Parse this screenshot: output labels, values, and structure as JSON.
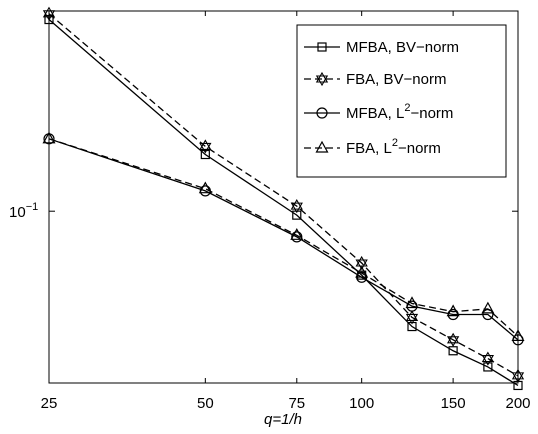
{
  "chart_data": {
    "type": "line",
    "xlabel": "q=1/h",
    "ylabel": "",
    "xscale": "log",
    "yscale": "log",
    "xlim": [
      25,
      200
    ],
    "ylim": [
      0.0265,
      0.47
    ],
    "x_ticks": [
      25,
      50,
      75,
      100,
      150,
      200
    ],
    "x_tick_labels": [
      "25",
      "50",
      "75",
      "100",
      "150",
      "200"
    ],
    "y_ticks": [
      0.1
    ],
    "y_tick_labels": [
      "10",
      "−1"
    ],
    "grid": false,
    "legend_position": "top-right",
    "series": [
      {
        "name": "MFBA, BV−norm",
        "name_parts": [
          "MFBA, BV−norm"
        ],
        "marker": "square",
        "dash": "solid",
        "x": [
          25,
          50,
          75,
          100,
          125,
          150,
          175,
          200
        ],
        "y": [
          0.44,
          0.155,
          0.097,
          0.061,
          0.041,
          0.034,
          0.03,
          0.026
        ]
      },
      {
        "name": "FBA, BV−norm",
        "name_parts": [
          "FBA, BV−norm"
        ],
        "marker": "hexagram",
        "dash": "dashed",
        "x": [
          25,
          50,
          75,
          100,
          125,
          150,
          175,
          200
        ],
        "y": [
          0.46,
          0.165,
          0.104,
          0.067,
          0.044,
          0.037,
          0.032,
          0.028
        ]
      },
      {
        "name": "MFBA, L2−norm",
        "name_parts": [
          "MFBA, L",
          "2",
          "−norm"
        ],
        "marker": "circle",
        "dash": "solid",
        "x": [
          25,
          50,
          75,
          100,
          125,
          150,
          175,
          200
        ],
        "y": [
          0.175,
          0.117,
          0.082,
          0.06,
          0.048,
          0.045,
          0.045,
          0.037
        ]
      },
      {
        "name": "FBA, L2−norm",
        "name_parts": [
          "FBA, L",
          "2",
          "−norm"
        ],
        "marker": "triangle",
        "dash": "dashed",
        "x": [
          25,
          50,
          75,
          100,
          125,
          150,
          175,
          200
        ],
        "y": [
          0.175,
          0.119,
          0.083,
          0.062,
          0.049,
          0.046,
          0.047,
          0.038
        ]
      }
    ]
  }
}
